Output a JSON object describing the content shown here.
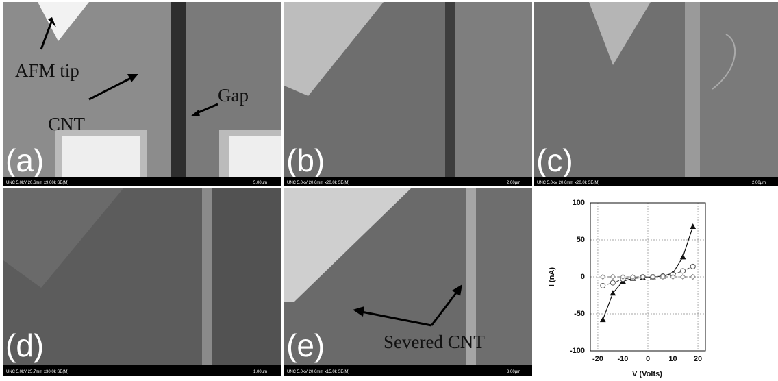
{
  "panels": [
    {
      "letter": "(a)",
      "info": "UNC 5.0kV 20.6mm x9.00k SE(M)",
      "scale": "5.00µm",
      "labels": [
        "AFM tip",
        "CNT",
        "Gap"
      ]
    },
    {
      "letter": "(b)",
      "info": "UNC 5.0kV 20.6mm x20.0k SE(M)",
      "scale": "2.00µm"
    },
    {
      "letter": "(c)",
      "info": "UNC 5.0kV 20.6mm x20.0k SE(M)",
      "scale": "2.00µm"
    },
    {
      "letter": "(d)",
      "info": "UNC 5.0kV 25.7mm x30.0k SE(M)",
      "scale": "1.00µm"
    },
    {
      "letter": "(e)",
      "info": "UNC 5.0kV 20.6mm x15.0k SE(M)",
      "scale": "3.00µm",
      "labels": [
        "Severed CNT"
      ]
    }
  ],
  "chart_data": {
    "type": "line",
    "x_label": "V (Volts)",
    "y_label": "I (nA)",
    "xlim": [
      -23,
      23
    ],
    "ylim": [
      -100,
      100
    ],
    "xticks": [
      -20,
      -10,
      0,
      10,
      20
    ],
    "yticks": [
      -100,
      -50,
      0,
      50,
      100
    ],
    "grid": true,
    "series": [
      {
        "color": "#111111",
        "marker": "triangle",
        "dash": false,
        "x": [
          -18,
          -14,
          -10,
          -6,
          -2,
          2,
          6,
          10,
          14,
          18
        ],
        "values": [
          -58,
          -22,
          -6,
          -2,
          -1,
          0,
          1,
          5,
          27,
          68
        ]
      },
      {
        "color": "#555555",
        "marker": "circle",
        "dash": true,
        "x": [
          -18,
          -14,
          -10,
          -6,
          -2,
          2,
          6,
          10,
          14,
          18
        ],
        "values": [
          -12,
          -8,
          -3,
          -1,
          0,
          0,
          1,
          3,
          8,
          14
        ]
      },
      {
        "color": "#888888",
        "marker": "diamond",
        "dash": true,
        "x": [
          -18,
          -14,
          -10,
          -6,
          -2,
          2,
          6,
          10,
          14,
          18
        ],
        "values": [
          0,
          0,
          0,
          0,
          0,
          0,
          0,
          0,
          0,
          0
        ]
      }
    ]
  }
}
